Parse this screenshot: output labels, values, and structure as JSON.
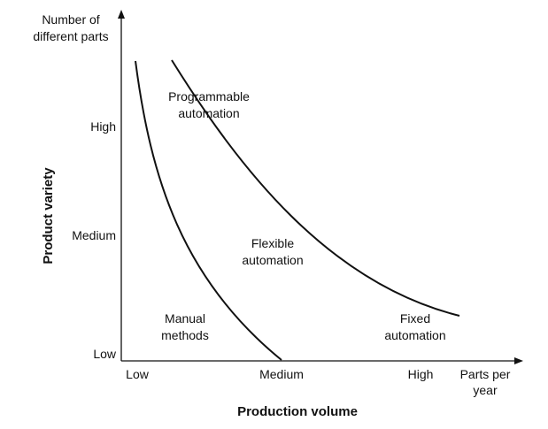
{
  "diagram": {
    "y_axis": {
      "unit_label_line1": "Number of",
      "unit_label_line2": "different parts",
      "title": "Product variety",
      "ticks": [
        "High",
        "Medium",
        "Low"
      ]
    },
    "x_axis": {
      "unit_label_line1": "Parts per",
      "unit_label_line2": "year",
      "title": "Production volume",
      "ticks": [
        "Low",
        "Medium",
        "High"
      ]
    },
    "regions": {
      "programmable_line1": "Programmable",
      "programmable_line2": "automation",
      "flexible_line1": "Flexible",
      "flexible_line2": "automation",
      "manual_line1": "Manual",
      "manual_line2": "methods",
      "fixed_line1": "Fixed",
      "fixed_line2": "automation"
    },
    "colors": {
      "ink": "#111111",
      "background": "#ffffff"
    }
  }
}
